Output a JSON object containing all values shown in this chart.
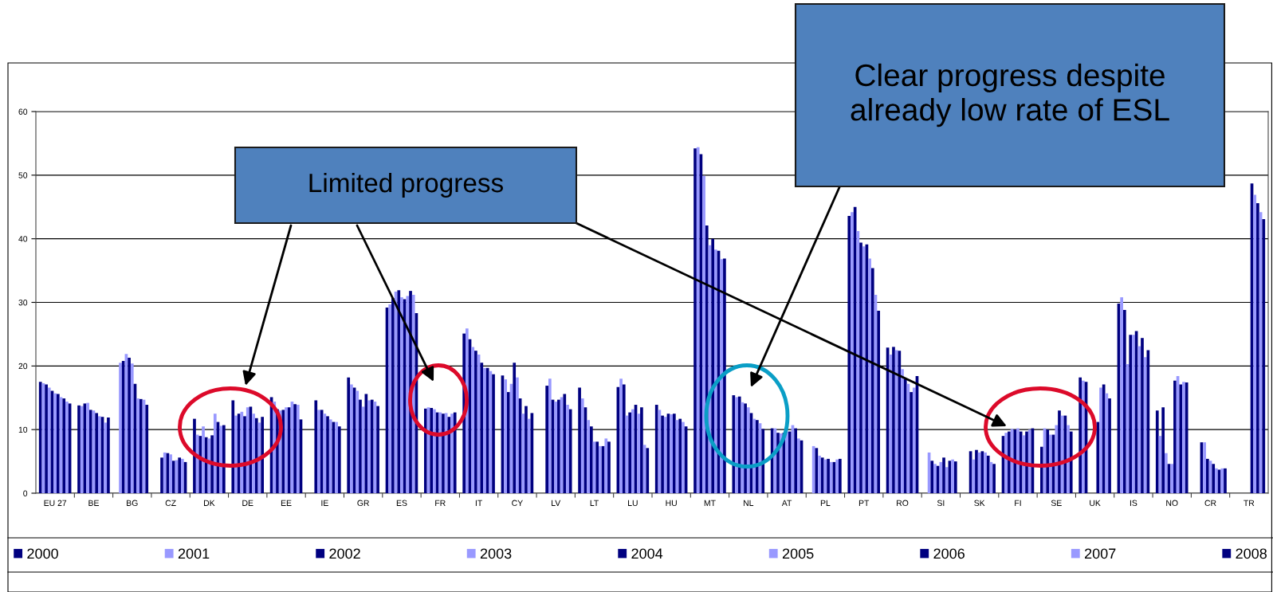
{
  "chart_data": {
    "type": "bar",
    "categories": [
      "EU 27",
      "BE",
      "BG",
      "CZ",
      "DK",
      "DE",
      "EE",
      "IE",
      "GR",
      "ES",
      "FR",
      "IT",
      "CY",
      "LV",
      "LT",
      "LU",
      "HU",
      "MT",
      "NL",
      "AT",
      "PL",
      "PT",
      "RO",
      "SI",
      "SK",
      "FI",
      "SE",
      "UK",
      "IS",
      "NO",
      "CR",
      "TR"
    ],
    "ylim": [
      0,
      60
    ],
    "yticks": [
      0,
      10,
      20,
      30,
      40,
      50,
      60
    ],
    "grid": "y",
    "legend": "bottom",
    "annotations": [
      "Limited progress",
      "Clear progress despite\nalready low rate of ESL"
    ],
    "series": [
      {
        "name": "2000",
        "color": "#000080",
        "values": [
          17.5,
          13.8,
          null,
          null,
          11.7,
          14.6,
          15.1,
          null,
          18.2,
          29.2,
          13.3,
          25.1,
          18.5,
          null,
          16.6,
          16.7,
          13.9,
          54.2,
          15.4,
          10.2,
          null,
          43.6,
          22.9,
          null,
          null,
          9.0,
          7.3,
          18.2,
          29.8,
          13.0,
          null,
          null
        ]
      },
      {
        "name": "2001",
        "color": "#9999ff",
        "values": [
          17.3,
          13.7,
          20.5,
          null,
          9.2,
          12.2,
          14.4,
          null,
          17.1,
          29.7,
          13.5,
          25.9,
          17.9,
          null,
          14.9,
          18.0,
          13.1,
          54.4,
          15.1,
          10.2,
          7.4,
          44.2,
          21.8,
          6.4,
          null,
          9.5,
          10.2,
          17.7,
          30.8,
          9.0,
          null,
          null
        ]
      },
      {
        "name": "2002",
        "color": "#000080",
        "values": [
          17.1,
          14.1,
          20.8,
          5.6,
          9.0,
          12.5,
          13.2,
          14.6,
          16.6,
          30.7,
          13.4,
          24.2,
          15.9,
          16.9,
          13.5,
          17.1,
          12.2,
          53.3,
          15.2,
          9.5,
          7.1,
          45.0,
          23.0,
          5.1,
          6.6,
          9.7,
          10.0,
          17.5,
          28.8,
          13.5,
          8.0,
          null
        ]
      },
      {
        "name": "2003",
        "color": "#9999ff",
        "values": [
          16.6,
          14.2,
          21.9,
          6.4,
          10.5,
          12.8,
          13.0,
          13.1,
          16.1,
          31.7,
          13.2,
          23.0,
          17.2,
          18.0,
          11.5,
          12.2,
          12.0,
          49.9,
          14.3,
          9.4,
          5.9,
          41.2,
          22.5,
          4.6,
          5.3,
          10.1,
          9.2,
          null,
          20.3,
          6.3,
          8.0,
          null
        ]
      },
      {
        "name": "2004",
        "color": "#000080",
        "values": [
          16.1,
          13.1,
          21.3,
          6.3,
          8.8,
          12.1,
          13.1,
          13.1,
          14.7,
          31.9,
          12.7,
          22.4,
          20.5,
          14.7,
          10.5,
          12.7,
          12.5,
          42.1,
          14.1,
          9.5,
          5.6,
          39.4,
          22.4,
          4.3,
          6.8,
          10.0,
          9.2,
          null,
          24.9,
          4.6,
          5.4,
          null
        ]
      },
      {
        "name": "2005",
        "color": "#9999ff",
        "values": [
          15.7,
          13.0,
          20.4,
          6.1,
          8.6,
          13.5,
          13.5,
          12.5,
          13.6,
          30.8,
          12.7,
          21.8,
          18.2,
          14.4,
          8.1,
          13.2,
          12.4,
          39.0,
          13.5,
          9.7,
          5.3,
          38.8,
          19.5,
          4.9,
          6.4,
          10.2,
          10.7,
          null,
          24.9,
          4.6,
          5.1,
          null
        ]
      },
      {
        "name": "2006",
        "color": "#000080",
        "values": [
          15.6,
          12.6,
          17.2,
          5.1,
          9.1,
          13.6,
          13.5,
          12.1,
          15.6,
          30.5,
          12.5,
          20.5,
          14.9,
          14.7,
          8.1,
          13.9,
          12.5,
          40.0,
          12.6,
          9.7,
          5.4,
          39.1,
          17.9,
          5.6,
          6.6,
          9.7,
          13.0,
          11.2,
          25.5,
          17.7,
          4.6,
          48.7
        ]
      },
      {
        "name": "2007",
        "color": "#9999ff",
        "values": [
          15.1,
          12.1,
          14.9,
          5.2,
          12.5,
          12.5,
          14.4,
          11.6,
          14.6,
          31.0,
          12.6,
          19.7,
          12.5,
          15.1,
          7.4,
          12.5,
          11.5,
          38.3,
          11.7,
          10.7,
          4.9,
          36.9,
          17.2,
          4.1,
          6.4,
          9.1,
          12.2,
          16.6,
          23.1,
          18.4,
          3.9,
          46.9
        ]
      },
      {
        "name": "2008",
        "color": "#000080",
        "values": [
          14.9,
          12.0,
          14.8,
          5.6,
          11.2,
          11.8,
          14.0,
          11.2,
          14.7,
          31.8,
          12.0,
          19.7,
          13.7,
          15.6,
          7.4,
          13.5,
          11.7,
          38.1,
          11.5,
          10.2,
          4.9,
          35.4,
          15.9,
          5.1,
          5.9,
          9.7,
          12.2,
          17.1,
          24.4,
          17.1,
          3.7,
          45.6
        ]
      },
      {
        "color": "#9999ff",
        "values": [
          14.4,
          11.1,
          14.7,
          5.4,
          10.6,
          11.1,
          13.9,
          11.2,
          14.4,
          31.2,
          12.5,
          19.2,
          11.7,
          13.9,
          8.6,
          7.6,
          11.2,
          36.8,
          11.0,
          8.6,
          5.3,
          31.2,
          16.6,
          5.3,
          4.9,
          10.0,
          10.7,
          15.7,
          21.4,
          17.5,
          3.9,
          44.2
        ]
      },
      {
        "color": "#000080",
        "values": [
          14.1,
          11.9,
          13.9,
          4.9,
          10.7,
          12.0,
          11.6,
          10.5,
          13.7,
          28.3,
          12.7,
          18.7,
          12.6,
          13.2,
          8.1,
          7.1,
          10.5,
          36.9,
          10.1,
          8.3,
          5.4,
          28.7,
          18.4,
          5.0,
          4.6,
          10.2,
          9.7,
          14.9,
          22.5,
          17.4,
          3.9,
          43.1
        ]
      }
    ]
  }
}
